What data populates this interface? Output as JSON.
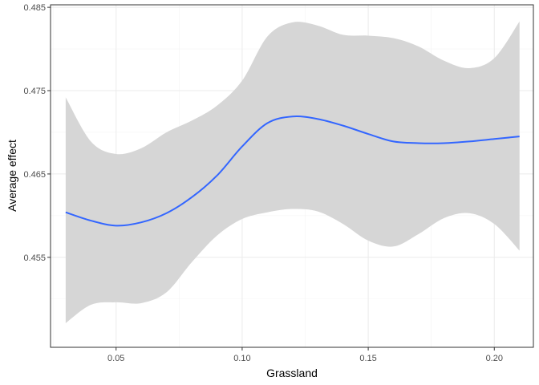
{
  "chart_data": {
    "type": "line",
    "title": "",
    "xlabel": "Grassland",
    "ylabel": "Average effect",
    "xlim": [
      0.024,
      0.2155
    ],
    "ylim": [
      0.4442,
      0.4853
    ],
    "x_ticks": [
      0.05,
      0.1,
      0.15,
      0.2
    ],
    "x_tick_labels": [
      "0.05",
      "0.10",
      "0.15",
      "0.20"
    ],
    "y_ticks": [
      0.455,
      0.465,
      0.475,
      0.485
    ],
    "y_tick_labels": [
      "0.455",
      "0.465",
      "0.475",
      "0.485"
    ],
    "x_minor": [
      0.025,
      0.075,
      0.125,
      0.175
    ],
    "y_minor": [
      0.45,
      0.46,
      0.47,
      0.48
    ],
    "grid": true,
    "legend": "none",
    "series": [
      {
        "color": "#3366ff",
        "x": [
          0.03,
          0.04,
          0.05,
          0.06,
          0.07,
          0.08,
          0.09,
          0.1,
          0.11,
          0.12,
          0.13,
          0.14,
          0.15,
          0.16,
          0.17,
          0.18,
          0.19,
          0.2,
          0.21
        ],
        "y": [
          0.4604,
          0.4594,
          0.4588,
          0.4592,
          0.4603,
          0.4622,
          0.4648,
          0.4683,
          0.4711,
          0.4719,
          0.4716,
          0.4708,
          0.4698,
          0.4689,
          0.4687,
          0.4687,
          0.4689,
          0.4692,
          0.4695
        ],
        "lower": [
          0.4471,
          0.4493,
          0.4496,
          0.4495,
          0.4508,
          0.4544,
          0.4576,
          0.4596,
          0.4604,
          0.4608,
          0.4605,
          0.459,
          0.457,
          0.4563,
          0.4578,
          0.4597,
          0.4603,
          0.459,
          0.4558
        ],
        "upper": [
          0.4742,
          0.4689,
          0.4674,
          0.4681,
          0.47,
          0.4714,
          0.4732,
          0.4762,
          0.4815,
          0.4832,
          0.4828,
          0.4817,
          0.4816,
          0.4813,
          0.4803,
          0.4786,
          0.4777,
          0.4789,
          0.4833
        ]
      }
    ],
    "ribbon_color": "#d6d6d6"
  }
}
